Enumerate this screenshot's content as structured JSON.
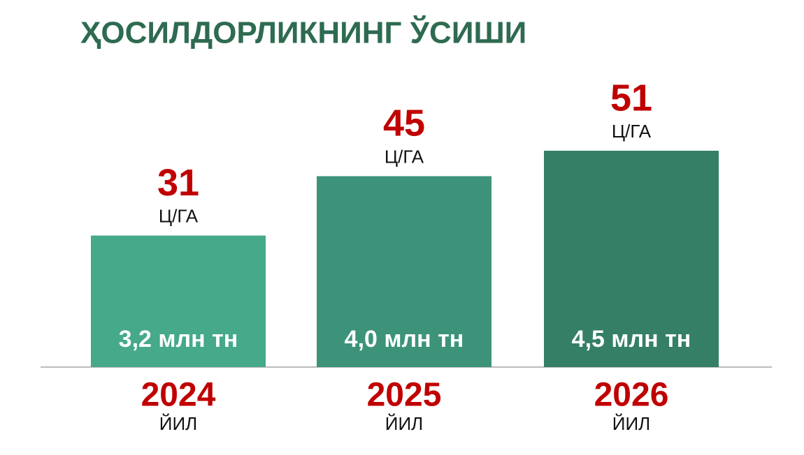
{
  "chart_data": {
    "type": "bar",
    "title": "ҲОСИЛДОРЛИКНИНГ ЎСИШИ",
    "categories": [
      "2024",
      "2025",
      "2026"
    ],
    "category_unit": "ЙИЛ",
    "values": [
      31,
      45,
      51
    ],
    "value_unit": "Ц/ГА",
    "bar_labels": [
      "3,2 млн тн",
      "4,0 млн тн",
      "4,5 млн тн"
    ],
    "colors": [
      "#45a98a",
      "#3c937a",
      "#357f66"
    ]
  }
}
